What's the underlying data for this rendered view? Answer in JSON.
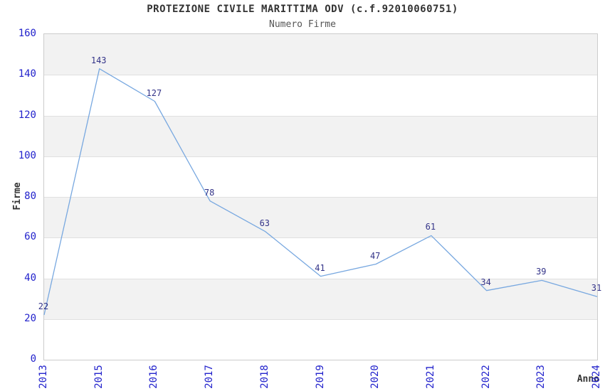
{
  "chart_data": {
    "type": "line",
    "title": "PROTEZIONE CIVILE MARITTIMA ODV (c.f.92010060751)",
    "subtitle": "Numero Firme",
    "xlabel": "Anno",
    "ylabel": "Firme",
    "categories": [
      "2013",
      "2015",
      "2016",
      "2017",
      "2018",
      "2019",
      "2020",
      "2021",
      "2022",
      "2023",
      "2024"
    ],
    "values": [
      22,
      143,
      127,
      78,
      63,
      41,
      47,
      61,
      34,
      39,
      31
    ],
    "ylim": [
      0,
      160
    ],
    "ytick_step": 20,
    "yticks": [
      0,
      20,
      40,
      60,
      80,
      100,
      120,
      140,
      160
    ],
    "grid": "horizontal-bands-alternating",
    "legend": "none",
    "colors": {
      "line": "#78a8e0",
      "tick_label": "#2222cc",
      "data_label": "#333388",
      "band_gray": "#f2f2f2",
      "band_white": "#ffffff",
      "gridline": "#e0e0e0",
      "plot_border": "#cccccc",
      "title": "#333333",
      "subtitle": "#555555",
      "axis_title": "#333333",
      "background": "#ffffff"
    }
  }
}
